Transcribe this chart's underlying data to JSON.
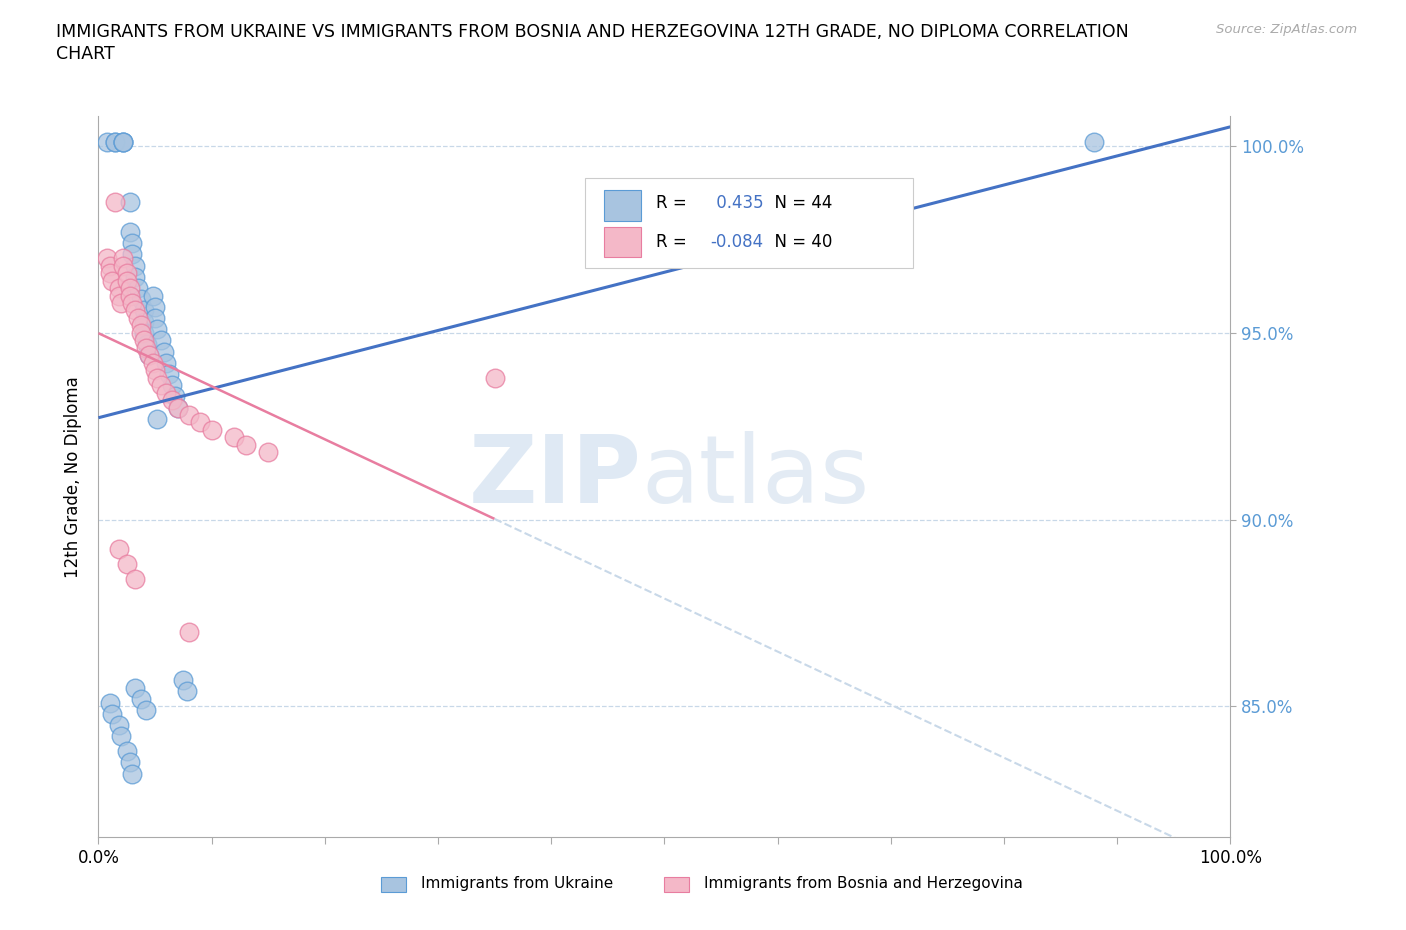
{
  "title_line1": "IMMIGRANTS FROM UKRAINE VS IMMIGRANTS FROM BOSNIA AND HERZEGOVINA 12TH GRADE, NO DIPLOMA CORRELATION",
  "title_line2": "CHART",
  "source": "Source: ZipAtlas.com",
  "ylabel": "12th Grade, No Diploma",
  "xlim": [
    0.0,
    1.0
  ],
  "ylim": [
    0.815,
    1.008
  ],
  "yticks": [
    0.85,
    0.9,
    0.95,
    1.0
  ],
  "ytick_labels": [
    "85.0%",
    "90.0%",
    "95.0%",
    "100.0%"
  ],
  "xticks": [
    0.0,
    0.1,
    0.2,
    0.3,
    0.4,
    0.5,
    0.6,
    0.7,
    0.8,
    0.9,
    1.0
  ],
  "ukraine_R": 0.435,
  "ukraine_N": 44,
  "bosnia_R": -0.084,
  "bosnia_N": 40,
  "ukraine_scatter_color": "#A8C4E0",
  "ukraine_edge_color": "#5B9BD5",
  "bosnia_scatter_color": "#F4B8C8",
  "bosnia_edge_color": "#E87DA0",
  "ukraine_line_color": "#4472C4",
  "bosnia_line_color": "#E87DA0",
  "grid_color": "#C8D8E8",
  "axis_color": "#AAAAAA",
  "background_color": "#FFFFFF",
  "right_tick_color": "#5B9BD5",
  "watermark_zip_color": "#B8CCE4",
  "watermark_atlas_color": "#9EBBD6",
  "ukraine_x": [
    0.008,
    0.015,
    0.015,
    0.022,
    0.022,
    0.022,
    0.028,
    0.028,
    0.03,
    0.03,
    0.032,
    0.032,
    0.035,
    0.038,
    0.04,
    0.04,
    0.04,
    0.043,
    0.045,
    0.048,
    0.05,
    0.05,
    0.052,
    0.055,
    0.058,
    0.06,
    0.062,
    0.065,
    0.068,
    0.07,
    0.075,
    0.078,
    0.01,
    0.012,
    0.018,
    0.02,
    0.025,
    0.028,
    0.03,
    0.032,
    0.038,
    0.042,
    0.88,
    0.052
  ],
  "ukraine_y": [
    1.001,
    1.001,
    1.001,
    1.001,
    1.001,
    1.001,
    0.985,
    0.977,
    0.974,
    0.971,
    0.968,
    0.965,
    0.962,
    0.959,
    0.956,
    0.953,
    0.95,
    0.947,
    0.944,
    0.96,
    0.957,
    0.954,
    0.951,
    0.948,
    0.945,
    0.942,
    0.939,
    0.936,
    0.933,
    0.93,
    0.857,
    0.854,
    0.851,
    0.848,
    0.845,
    0.842,
    0.838,
    0.835,
    0.832,
    0.855,
    0.852,
    0.849,
    1.001,
    0.927
  ],
  "bosnia_x": [
    0.008,
    0.01,
    0.01,
    0.012,
    0.015,
    0.018,
    0.018,
    0.02,
    0.022,
    0.022,
    0.025,
    0.025,
    0.028,
    0.028,
    0.03,
    0.032,
    0.035,
    0.038,
    0.038,
    0.04,
    0.042,
    0.045,
    0.048,
    0.05,
    0.052,
    0.055,
    0.06,
    0.065,
    0.07,
    0.08,
    0.09,
    0.1,
    0.12,
    0.13,
    0.15,
    0.018,
    0.025,
    0.032,
    0.35,
    0.08
  ],
  "bosnia_y": [
    0.97,
    0.968,
    0.966,
    0.964,
    0.985,
    0.962,
    0.96,
    0.958,
    0.97,
    0.968,
    0.966,
    0.964,
    0.962,
    0.96,
    0.958,
    0.956,
    0.954,
    0.952,
    0.95,
    0.948,
    0.946,
    0.944,
    0.942,
    0.94,
    0.938,
    0.936,
    0.934,
    0.932,
    0.93,
    0.928,
    0.926,
    0.924,
    0.922,
    0.92,
    0.918,
    0.892,
    0.888,
    0.884,
    0.938,
    0.87
  ]
}
